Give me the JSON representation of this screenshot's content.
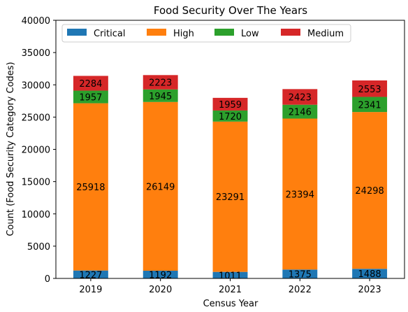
{
  "chart_data": {
    "type": "bar",
    "stacked": true,
    "title": "Food Security Over The Years",
    "xlabel": "Census Year",
    "ylabel": "Count (Food Security Category Codes)",
    "categories": [
      "2019",
      "2020",
      "2021",
      "2022",
      "2023"
    ],
    "ylim": [
      0,
      40000
    ],
    "yticks": [
      0,
      5000,
      10000,
      15000,
      20000,
      25000,
      30000,
      35000,
      40000
    ],
    "legend_position": "top",
    "series": [
      {
        "name": "Critical",
        "color": "#1f77b4",
        "values": [
          1227,
          1192,
          1011,
          1375,
          1488
        ]
      },
      {
        "name": "High",
        "color": "#ff7f0e",
        "values": [
          25918,
          26149,
          23291,
          23394,
          24298
        ]
      },
      {
        "name": "Low",
        "color": "#2ca02c",
        "values": [
          1957,
          1945,
          1720,
          2146,
          2341
        ]
      },
      {
        "name": "Medium",
        "color": "#d62728",
        "values": [
          2284,
          2223,
          1959,
          2423,
          2553
        ]
      }
    ]
  }
}
